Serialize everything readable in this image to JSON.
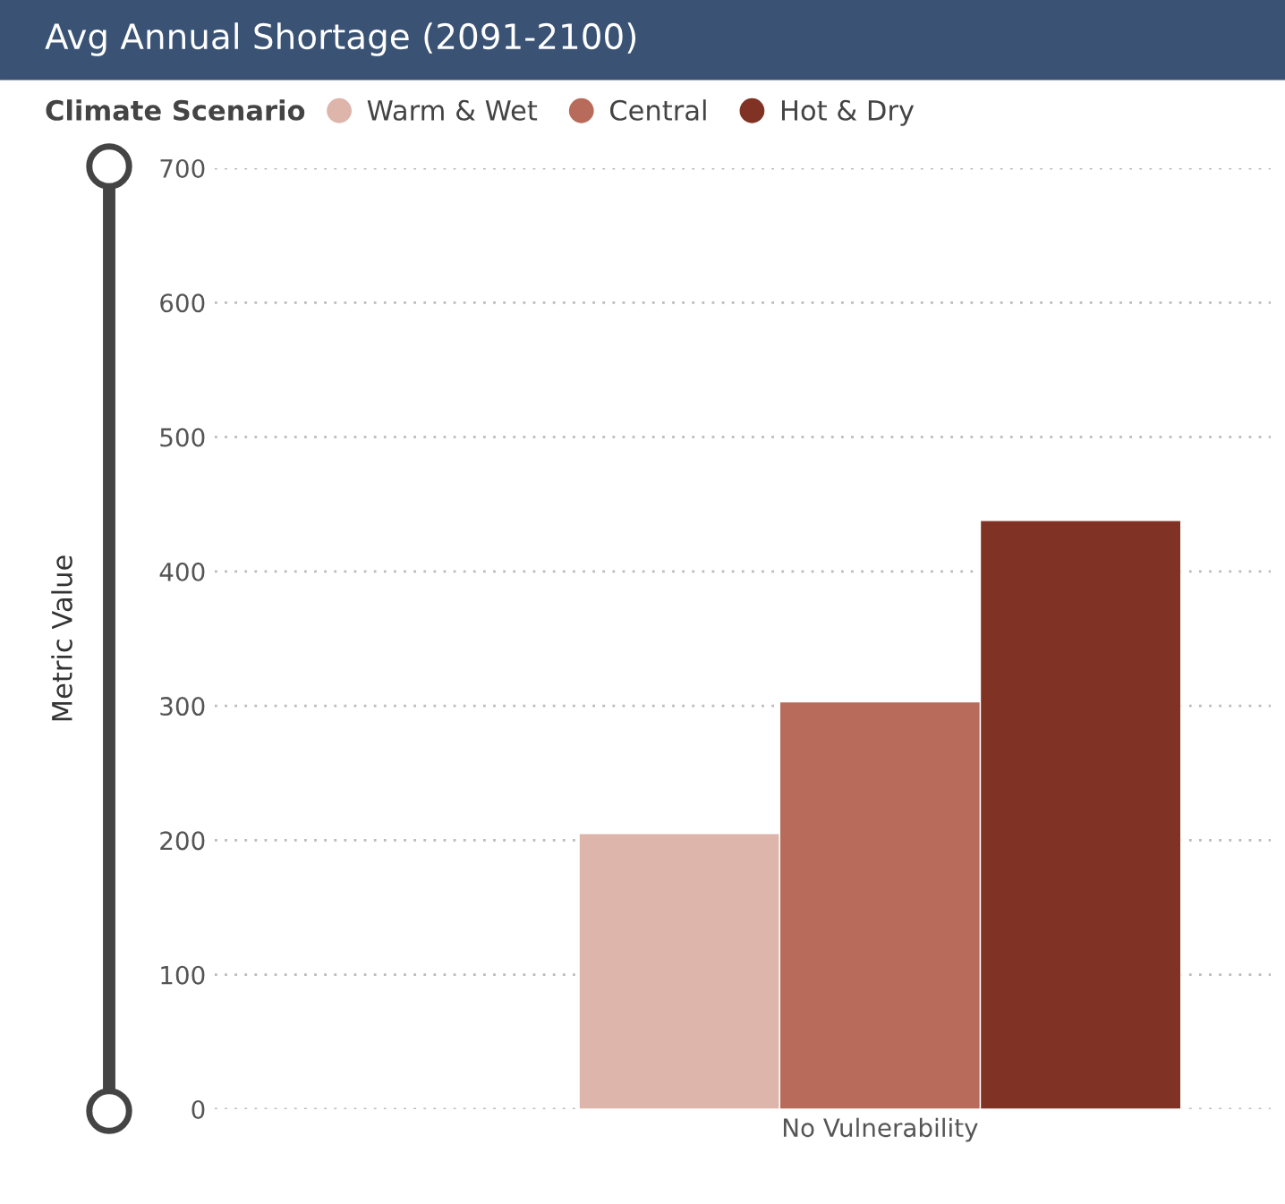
{
  "chart_data": {
    "type": "bar",
    "title": "Avg Annual Shortage (2091-2100)",
    "legend_title": "Climate Scenario",
    "ylabel": "Metric Value",
    "categories": [
      "No Vulnerability"
    ],
    "series": [
      {
        "name": "Warm & Wet",
        "color": "#ddb5ab",
        "values": [
          205
        ]
      },
      {
        "name": "Central",
        "color": "#b86b5a",
        "values": [
          303
        ]
      },
      {
        "name": "Hot & Dry",
        "color": "#803325",
        "values": [
          438
        ]
      }
    ],
    "ylim": [
      0,
      700
    ],
    "yticks": [
      0,
      100,
      200,
      300,
      400,
      500,
      600,
      700
    ],
    "grid": "y",
    "legend": "top left"
  }
}
